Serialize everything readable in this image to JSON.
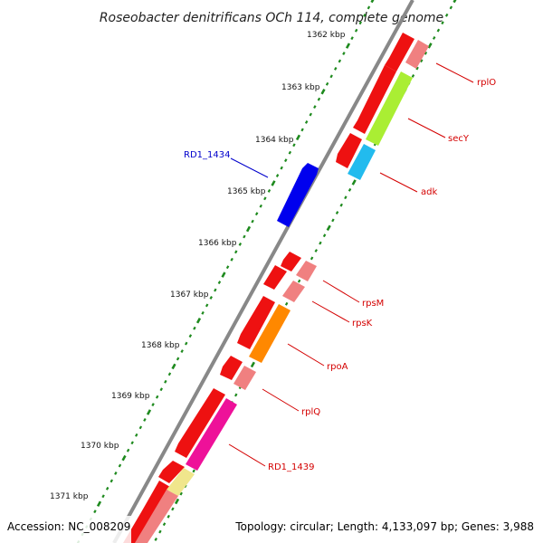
{
  "title": "Roseobacter denitrificans OCh 114, complete genome",
  "footer": {
    "accession": "Accession: NC_008209",
    "topology": "Topology: circular; Length: 4,133,097 bp; Genes: 3,988"
  },
  "ticks": [
    {
      "label": "1362 kbp",
      "kbp": 1362
    },
    {
      "label": "1363 kbp",
      "kbp": 1363
    },
    {
      "label": "1364 kbp",
      "kbp": 1364
    },
    {
      "label": "1365 kbp",
      "kbp": 1365
    },
    {
      "label": "1366 kbp",
      "kbp": 1366
    },
    {
      "label": "1367 kbp",
      "kbp": 1367
    },
    {
      "label": "1368 kbp",
      "kbp": 1368
    },
    {
      "label": "1369 kbp",
      "kbp": 1369
    },
    {
      "label": "1370 kbp",
      "kbp": 1370
    },
    {
      "label": "1371 kbp",
      "kbp": 1371
    }
  ],
  "labels": [
    {
      "text": "rplO",
      "color": "#d40000"
    },
    {
      "text": "secY",
      "color": "#d40000"
    },
    {
      "text": "adk",
      "color": "#d40000"
    },
    {
      "text": "RD1_1434",
      "color": "#0000cc"
    },
    {
      "text": "rpsM",
      "color": "#d40000"
    },
    {
      "text": "rpsK",
      "color": "#d40000"
    },
    {
      "text": "rpoA",
      "color": "#d40000"
    },
    {
      "text": "rplQ",
      "color": "#d40000"
    },
    {
      "text": "RD1_1439",
      "color": "#d40000"
    }
  ],
  "colors": {
    "backbone": "#888888",
    "tick_dots": "#1e8a1e",
    "red": "#ee1111",
    "pink": "#f08080",
    "lime": "#aaee33",
    "cyan": "#22bbee",
    "blue": "#0000ee",
    "orange": "#ff8800",
    "magenta": "#ee1199",
    "paleyellow": "#f0e68c"
  }
}
